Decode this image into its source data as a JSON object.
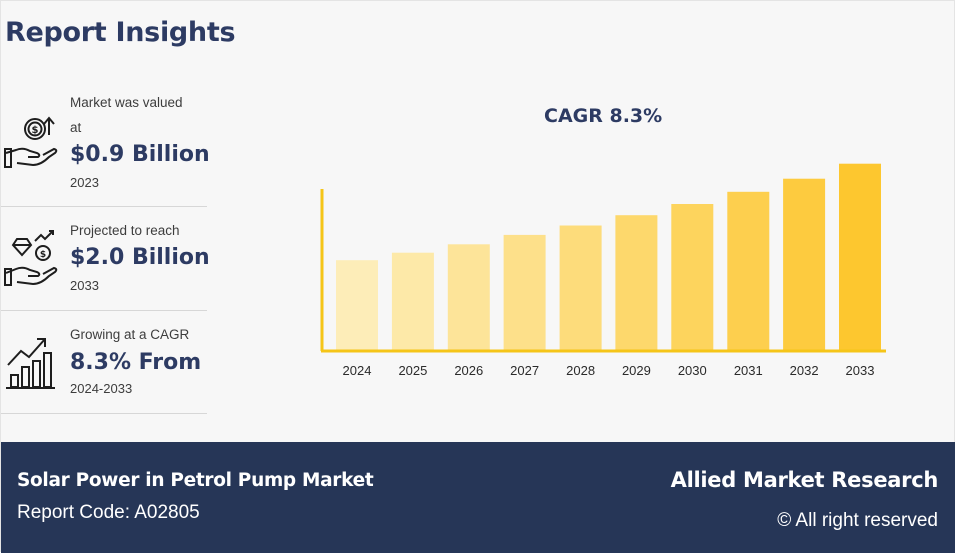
{
  "report": {
    "title": "Report Insights"
  },
  "stats": [
    {
      "label_1": "Market was valued",
      "label_2": "at",
      "value": "$0.9 Billion",
      "sub": "2023",
      "icon": "money-hand-icon"
    },
    {
      "label_1": "Projected to reach",
      "label_2": "",
      "value": "$2.0 Billion",
      "sub": "2033",
      "icon": "diamond-coin-hand-icon"
    },
    {
      "label_1": "Growing at a CAGR",
      "label_2": "",
      "value": "8.3% From",
      "sub": "2024-2033",
      "icon": "growth-chart-icon"
    }
  ],
  "chart_data": {
    "type": "bar",
    "title": "CAGR 8.3%",
    "categories": [
      "2024",
      "2025",
      "2026",
      "2027",
      "2028",
      "2029",
      "2030",
      "2031",
      "2032",
      "2033"
    ],
    "values": [
      0.97,
      1.05,
      1.14,
      1.24,
      1.34,
      1.45,
      1.57,
      1.7,
      1.84,
      2.0
    ],
    "colors": [
      "#fdedb8",
      "#fde9a8",
      "#fde499",
      "#fde08a",
      "#fddc7b",
      "#fdd86c",
      "#fdd45d",
      "#fdcf4e",
      "#fdcb3f",
      "#fdc72f"
    ],
    "axis_color": "#f5c518",
    "xlabel": "",
    "ylabel": "",
    "ylim": [
      0,
      2.2
    ],
    "grid": false
  },
  "footer": {
    "market": "Solar Power in Petrol Pump Market",
    "code": "Report Code: A02805",
    "brand": "Allied Market Research",
    "rights": "© All right reserved"
  }
}
